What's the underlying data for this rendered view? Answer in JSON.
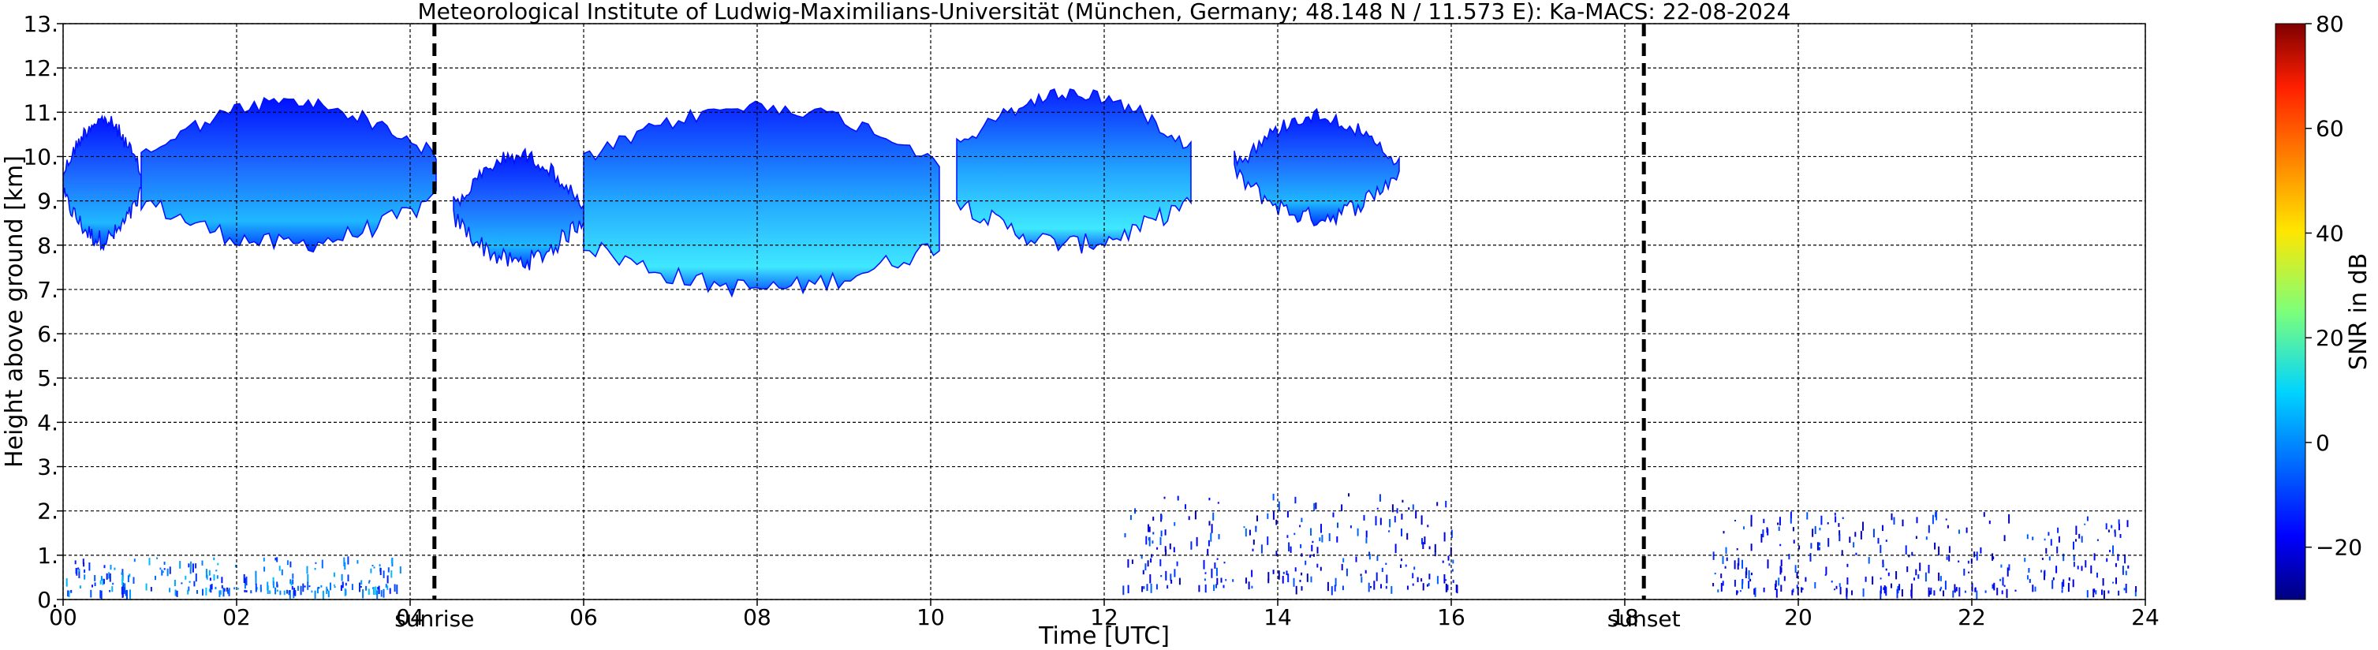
{
  "chart_data": {
    "type": "heatmap",
    "title": "Meteorological Institute of Ludwig-Maximilians-Universität (München, Germany; 48.148 N / 11.573 E):    Ka-MACS: 22-08-2024",
    "xlabel": "Time [UTC]",
    "ylabel": "Height above ground [km]",
    "xlim": [
      0,
      24
    ],
    "ylim": [
      0,
      13
    ],
    "x_ticks": [
      "00",
      "02",
      "04",
      "06",
      "08",
      "10",
      "12",
      "14",
      "16",
      "18",
      "20",
      "22",
      "24"
    ],
    "x_tick_values": [
      0,
      2,
      4,
      6,
      8,
      10,
      12,
      14,
      16,
      18,
      20,
      22,
      24
    ],
    "y_ticks": [
      "0.",
      "1.",
      "2.",
      "3.",
      "4.",
      "5.",
      "6.",
      "7.",
      "8.",
      "9.",
      "10.",
      "11.",
      "12.",
      "13."
    ],
    "y_tick_values": [
      0,
      1,
      2,
      3,
      4,
      5,
      6,
      7,
      8,
      9,
      10,
      11,
      12,
      13
    ],
    "grid": true,
    "colormap": "jet",
    "colorbar": {
      "label": "SNR in dB",
      "range": [
        -30,
        80
      ],
      "ticks": [
        "−20",
        "0",
        "20",
        "40",
        "60",
        "80"
      ],
      "tick_values": [
        -20,
        0,
        20,
        40,
        60,
        80
      ]
    },
    "annotations": [
      {
        "label": "sunrise",
        "x": 4.28
      },
      {
        "label": "sunset",
        "x": 18.22
      }
    ],
    "cloud_layers": [
      {
        "x_start": 0.0,
        "x_end": 0.9,
        "base_km": 7.9,
        "top_km": 11.0,
        "snr_db": -15
      },
      {
        "x_start": 0.9,
        "x_end": 4.3,
        "base_km": 7.8,
        "top_km": 11.4,
        "snr_db": -10
      },
      {
        "x_start": 4.5,
        "x_end": 6.0,
        "base_km": 7.4,
        "top_km": 10.2,
        "snr_db": -5
      },
      {
        "x_start": 6.0,
        "x_end": 10.1,
        "base_km": 6.8,
        "top_km": 11.3,
        "snr_db": 0
      },
      {
        "x_start": 10.3,
        "x_end": 13.0,
        "base_km": 7.8,
        "top_km": 11.6,
        "snr_db": 5
      },
      {
        "x_start": 13.5,
        "x_end": 15.4,
        "base_km": 8.4,
        "top_km": 11.1,
        "snr_db": -10
      }
    ],
    "low_level_echoes": [
      {
        "x_start": 0.0,
        "x_end": 3.9,
        "base_km": 0.2,
        "top_km": 1.0,
        "snr_db": -5
      },
      {
        "x_start": 12.2,
        "x_end": 16.1,
        "base_km": 0.3,
        "top_km": 2.4,
        "snr_db": -15
      },
      {
        "x_start": 19.0,
        "x_end": 23.9,
        "base_km": 0.2,
        "top_km": 2.0,
        "snr_db": -15
      }
    ]
  }
}
